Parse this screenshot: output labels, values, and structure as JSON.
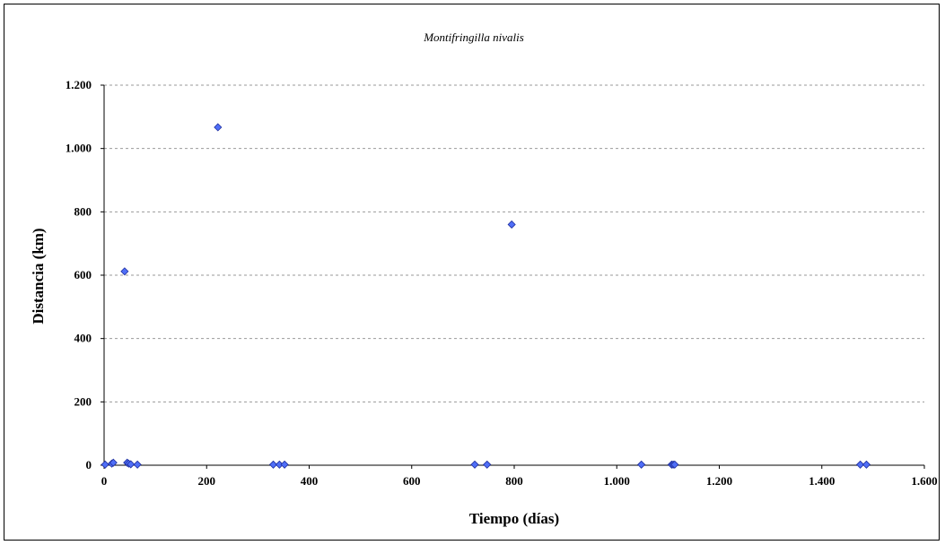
{
  "chart_data": {
    "type": "scatter",
    "title": "Montifringilla nivalis",
    "xlabel": "Tiempo (días)",
    "ylabel": "Distancia (km)",
    "xlim": [
      0,
      1600
    ],
    "ylim": [
      0,
      1200
    ],
    "x_ticks": [
      0,
      200,
      400,
      600,
      800,
      1000,
      1200,
      1400,
      1600
    ],
    "x_tick_labels": [
      "0",
      "200",
      "400",
      "600",
      "800",
      "1.000",
      "1.200",
      "1.400",
      "1.600"
    ],
    "y_ticks": [
      0,
      200,
      400,
      600,
      800,
      1000,
      1200
    ],
    "y_tick_labels": [
      "0",
      "200",
      "400",
      "600",
      "800",
      "1.000",
      "1.200"
    ],
    "grid": "horizontal dashed",
    "marker": "diamond",
    "colors": {
      "marker_fill": "#4f6ef7",
      "marker_edge": "#1f2f9f",
      "grid": "#9a9a9a",
      "axis": "#000000"
    },
    "x": [
      2,
      15,
      18,
      45,
      48,
      52,
      65,
      40,
      222,
      330,
      342,
      352,
      723,
      747,
      795,
      1048,
      1107,
      1110,
      1113,
      1475,
      1487
    ],
    "y": [
      2,
      5,
      8,
      8,
      5,
      3,
      2,
      612,
      1067,
      2,
      2,
      2,
      2,
      2,
      760,
      2,
      2,
      2,
      2,
      2,
      2
    ]
  }
}
